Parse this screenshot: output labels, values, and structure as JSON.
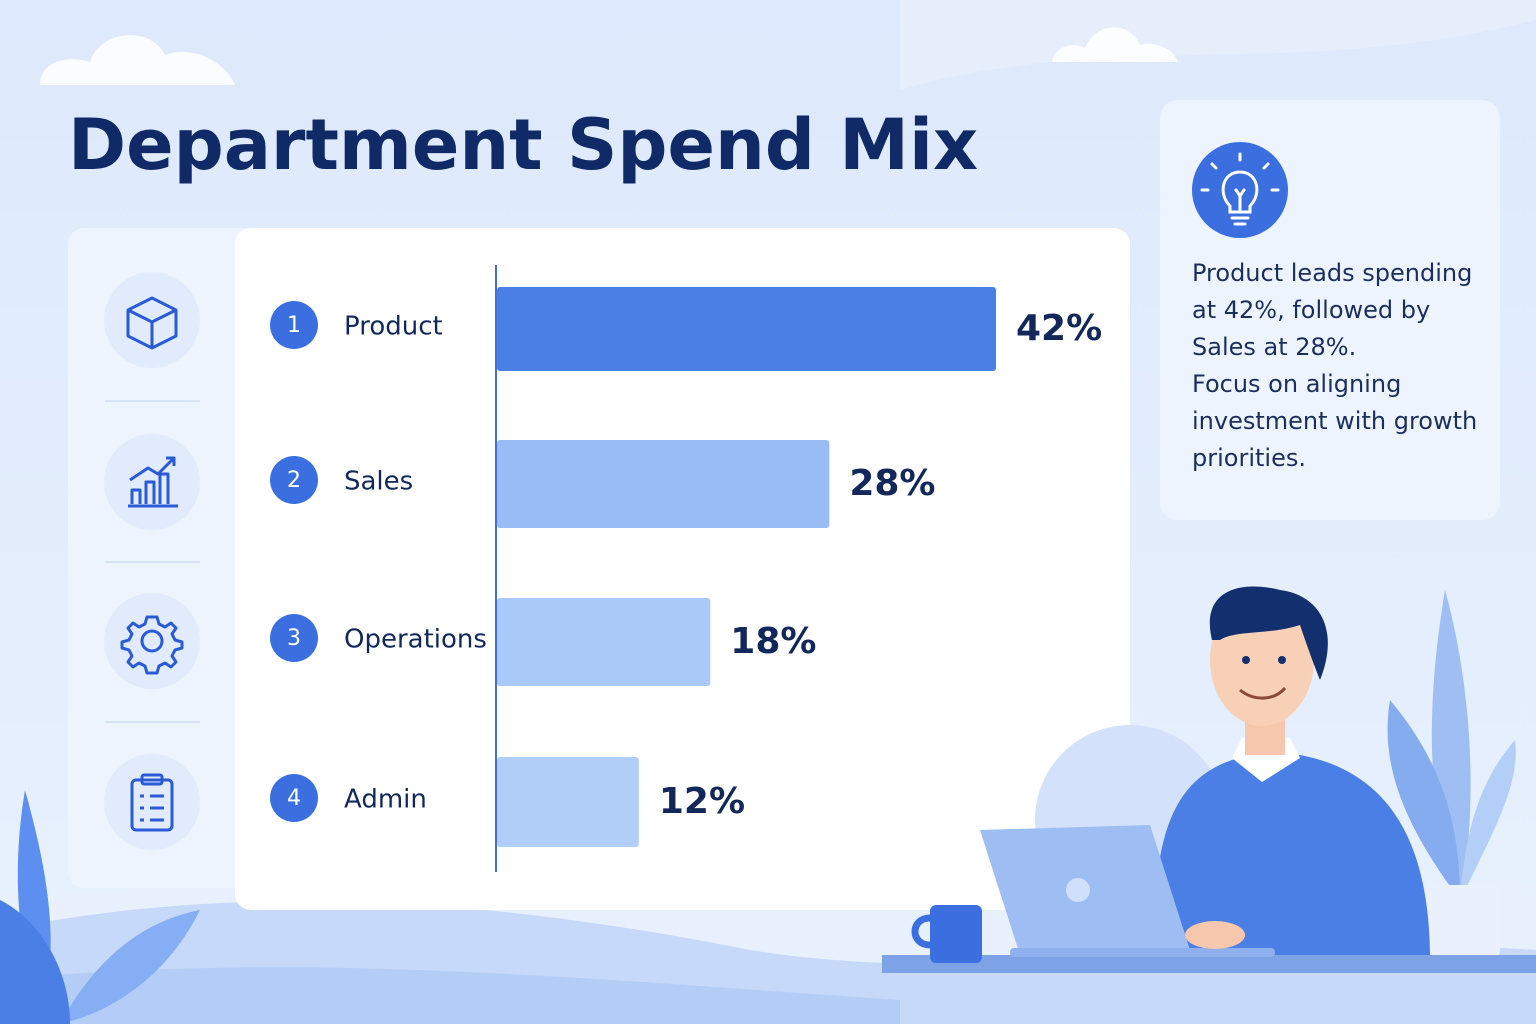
{
  "chart_data": {
    "type": "bar",
    "orientation": "horizontal",
    "title": "Department Spend Mix",
    "ranks": [
      1,
      2,
      3,
      4
    ],
    "categories": [
      "Product",
      "Sales",
      "Operations",
      "Admin"
    ],
    "values": [
      42,
      28,
      18,
      12
    ],
    "value_labels": [
      "42%",
      "28%",
      "18%",
      "12%"
    ],
    "colors": [
      "#4a7fe6",
      "#98bdf5",
      "#a9c9f8",
      "#b0cef8"
    ],
    "annotations": [
      "Product leads spending at 42%, followed by Sales at 28%.",
      "Focus on aligning investment with growth priorities."
    ]
  }
}
